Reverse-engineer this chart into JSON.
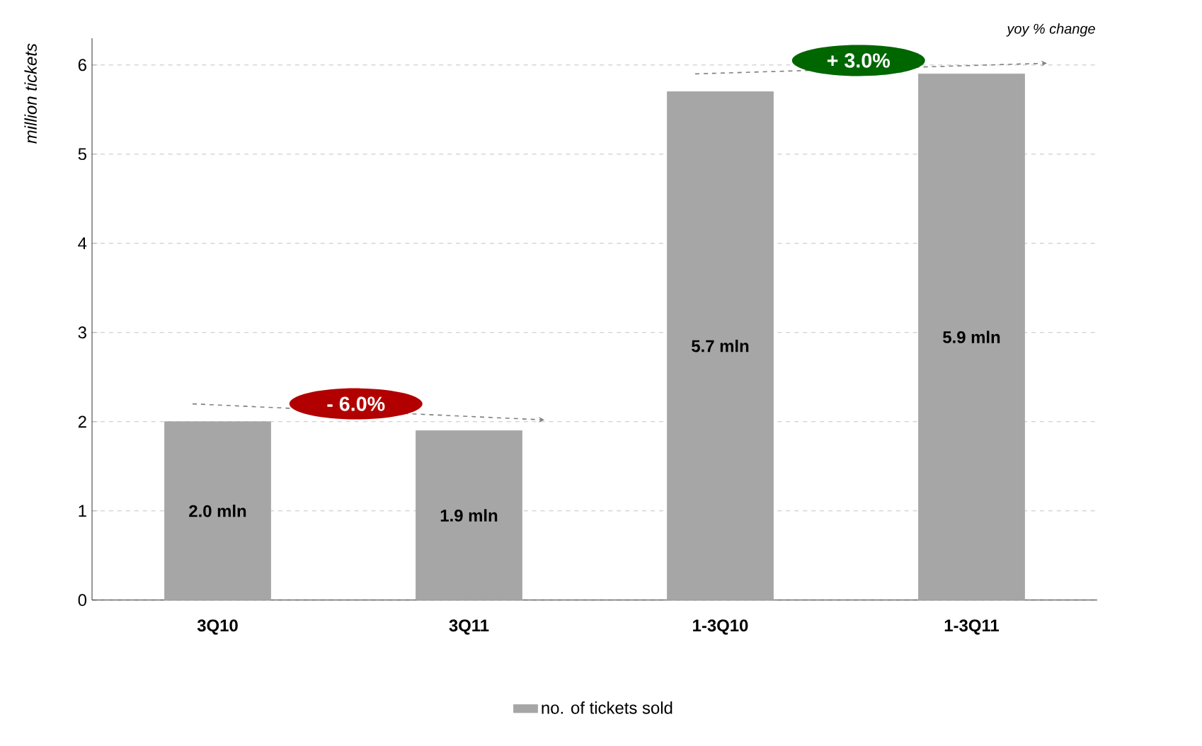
{
  "chart_data": {
    "type": "bar",
    "ylabel": "million tickets",
    "categories": [
      "3Q10",
      "3Q11",
      "1-3Q10",
      "1-3Q11"
    ],
    "series": [
      {
        "name": "no. of tickets sold",
        "color": "#a6a6a6",
        "values": [
          2.0,
          1.9,
          5.7,
          5.9
        ],
        "value_labels": [
          "2.0 mln",
          "1.9 mln",
          "5.7 mln",
          "5.9 mln"
        ]
      }
    ],
    "ylim": [
      0,
      6.3
    ],
    "yticks": [
      0,
      1,
      2,
      3,
      4,
      5,
      6
    ],
    "grid": "y",
    "legend": "bottom",
    "annotations": [
      "- 6.0%",
      "+ 3.0%",
      "yoy % change"
    ]
  }
}
